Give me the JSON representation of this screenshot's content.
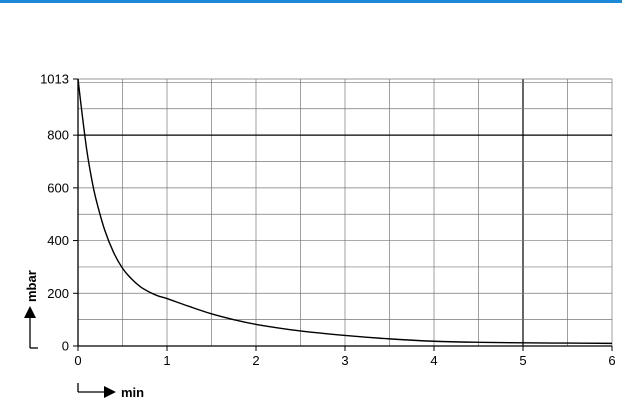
{
  "colors": {
    "top_rule": "#1e88d8",
    "grid": "#777777",
    "curve": "#000000",
    "axis": "#000000"
  },
  "chart_data": {
    "type": "line",
    "title": "",
    "xlabel": "min",
    "ylabel": "mbar",
    "xlim": [
      0,
      6
    ],
    "ylim": [
      0,
      1013
    ],
    "grid": true,
    "x_ticks": [
      0,
      1,
      2,
      3,
      4,
      5,
      6
    ],
    "y_ticks": [
      0,
      200,
      400,
      600,
      800,
      1013
    ],
    "x_tick_labels": [
      "0",
      "1",
      "2",
      "3",
      "4",
      "5",
      "6"
    ],
    "y_tick_labels": [
      "0",
      "200",
      "400",
      "600",
      "800",
      "1013"
    ],
    "emphasized_lines": {
      "y": 800,
      "x": 5
    },
    "series": [
      {
        "x": [
          0,
          0.05,
          0.1,
          0.15,
          0.2,
          0.3,
          0.4,
          0.5,
          0.6,
          0.7,
          0.8,
          0.9,
          1.0,
          1.25,
          1.5,
          1.75,
          2.0,
          2.5,
          3.0,
          3.5,
          4.0,
          4.5,
          5.0,
          5.5,
          6.0
        ],
        "y": [
          1013,
          870,
          740,
          640,
          560,
          440,
          355,
          295,
          255,
          225,
          205,
          190,
          180,
          150,
          122,
          100,
          82,
          57,
          40,
          27,
          18,
          14,
          12,
          11,
          10
        ]
      }
    ]
  }
}
